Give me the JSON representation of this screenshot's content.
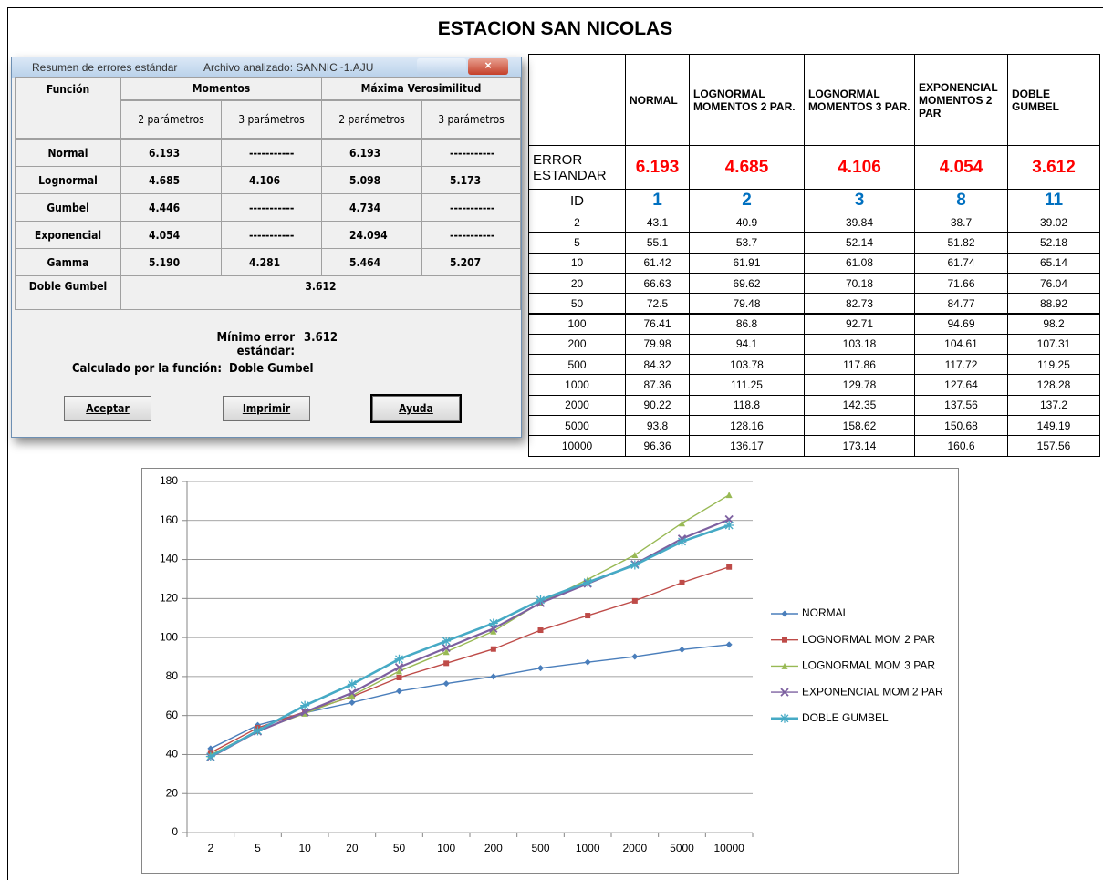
{
  "header": {
    "title": "ESTACION SAN NICOLAS"
  },
  "dialog": {
    "title": "Resumen de errores estándar",
    "file": "Archivo analizado: SANNIC~1.AJU",
    "columns": [
      "Función",
      "Momentos",
      "Máxima Verosimilitud"
    ],
    "subcolumns": [
      "2 parámetros",
      "3 parámetros",
      "2 parámetros",
      "3 parámetros"
    ],
    "rows": [
      {
        "name": "Normal",
        "values": [
          "6.193",
          "-----------",
          "6.193",
          "-----------"
        ]
      },
      {
        "name": "Lognormal",
        "values": [
          "4.685",
          "4.106",
          "5.098",
          "5.173"
        ]
      },
      {
        "name": "Gumbel",
        "values": [
          "4.446",
          "-----------",
          "4.734",
          "-----------"
        ]
      },
      {
        "name": "Exponencial",
        "values": [
          "4.054",
          "-----------",
          "24.094",
          "-----------"
        ]
      },
      {
        "name": "Gamma",
        "values": [
          "5.190",
          "4.281",
          "5.464",
          "5.207"
        ]
      }
    ],
    "doble_gumbel": {
      "name": "Doble Gumbel",
      "value": "3.612"
    },
    "min_label": "Mínimo error estándar:",
    "min_value": "3.612",
    "function_label": "Calculado por la función:",
    "function_value": "Doble Gumbel",
    "buttons": [
      "Aceptar",
      "Imprimir",
      "Ayuda"
    ]
  },
  "table": {
    "columns": [
      "NORMAL",
      "LOGNORMAL MOMENTOS 2 PAR.",
      "LOGNORMAL MOMENTOS 3 PAR.",
      "EXPONENCIAL MOMENTOS 2 PAR",
      "DOBLE GUMBEL"
    ],
    "error_label": "ERROR ESTANDAR",
    "errors": [
      "6.193",
      "4.685",
      "4.106",
      "4.054",
      "3.612"
    ],
    "id_label": "ID",
    "ids": [
      "1",
      "2",
      "3",
      "8",
      "11"
    ],
    "rows": [
      [
        "2",
        "43.1",
        "40.9",
        "39.84",
        "38.7",
        "39.02"
      ],
      [
        "5",
        "55.1",
        "53.7",
        "52.14",
        "51.82",
        "52.18"
      ],
      [
        "10",
        "61.42",
        "61.91",
        "61.08",
        "61.74",
        "65.14"
      ],
      [
        "20",
        "66.63",
        "69.62",
        "70.18",
        "71.66",
        "76.04"
      ],
      [
        "50",
        "72.5",
        "79.48",
        "82.73",
        "84.77",
        "88.92"
      ],
      [
        "100",
        "76.41",
        "86.8",
        "92.71",
        "94.69",
        "98.2"
      ],
      [
        "200",
        "79.98",
        "94.1",
        "103.18",
        "104.61",
        "107.31"
      ],
      [
        "500",
        "84.32",
        "103.78",
        "117.86",
        "117.72",
        "119.25"
      ],
      [
        "1000",
        "87.36",
        "111.25",
        "129.78",
        "127.64",
        "128.28"
      ],
      [
        "2000",
        "90.22",
        "118.8",
        "142.35",
        "137.56",
        "137.2"
      ],
      [
        "5000",
        "93.8",
        "128.16",
        "158.62",
        "150.68",
        "149.19"
      ],
      [
        "10000",
        "96.36",
        "136.17",
        "173.14",
        "160.6",
        "157.56"
      ]
    ]
  },
  "chart_data": {
    "type": "line",
    "categories": [
      "2",
      "5",
      "10",
      "20",
      "50",
      "100",
      "200",
      "500",
      "1000",
      "2000",
      "5000",
      "10000"
    ],
    "series": [
      {
        "name": "NORMAL",
        "color": "#4a7ebb",
        "marker": "diamond",
        "values": [
          43.1,
          55.1,
          61.42,
          66.63,
          72.5,
          76.41,
          79.98,
          84.32,
          87.36,
          90.22,
          93.8,
          96.36
        ]
      },
      {
        "name": "LOGNORMAL MOM 2 PAR",
        "color": "#be4b48",
        "marker": "square",
        "values": [
          40.9,
          53.7,
          61.91,
          69.62,
          79.48,
          86.8,
          94.1,
          103.78,
          111.25,
          118.8,
          128.16,
          136.17
        ]
      },
      {
        "name": "LOGNORMAL MOM 3 PAR",
        "color": "#98b954",
        "marker": "triangle",
        "values": [
          39.84,
          52.14,
          61.08,
          70.18,
          82.73,
          92.71,
          103.18,
          117.86,
          129.78,
          142.35,
          158.62,
          173.14
        ]
      },
      {
        "name": "EXPONENCIAL MOM 2 PAR",
        "color": "#7d60a0",
        "marker": "x",
        "values": [
          38.7,
          51.82,
          61.74,
          71.66,
          84.77,
          94.69,
          104.61,
          117.72,
          127.64,
          137.56,
          150.68,
          160.6
        ]
      },
      {
        "name": "DOBLE GUMBEL",
        "color": "#46aac5",
        "marker": "star",
        "values": [
          39.02,
          52.18,
          65.14,
          76.04,
          88.92,
          98.2,
          107.31,
          119.25,
          128.28,
          137.2,
          149.19,
          157.56
        ]
      }
    ],
    "ylim": [
      0,
      180
    ],
    "yticks": [
      0,
      20,
      40,
      60,
      80,
      100,
      120,
      140,
      160,
      180
    ],
    "grid": true,
    "legend": "right"
  }
}
